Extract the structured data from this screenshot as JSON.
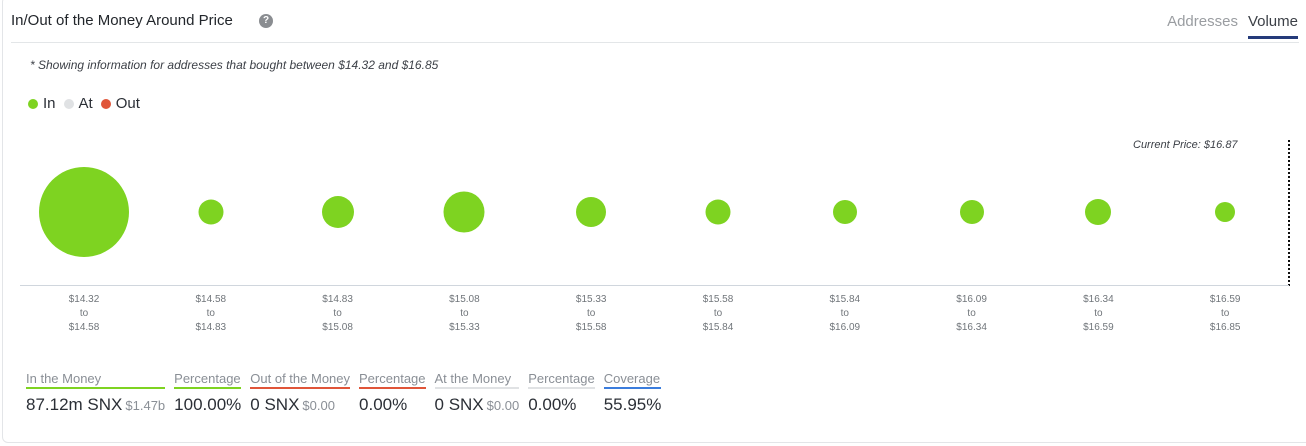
{
  "header": {
    "title": "In/Out of the Money Around Price",
    "help_icon": "question-circle-icon",
    "tabs": [
      {
        "label": "Addresses",
        "active": false
      },
      {
        "label": "Volume",
        "active": true
      }
    ]
  },
  "note": "* Showing information for addresses that bought between $14.32 and $16.85",
  "legend": [
    {
      "label": "In",
      "color": "#7ed321"
    },
    {
      "label": "At",
      "color": "#e0e2e4"
    },
    {
      "label": "Out",
      "color": "#e05539"
    }
  ],
  "current_price_label": "Current Price: $16.87",
  "colors": {
    "in": "#7ed321",
    "at": "#e0e2e4",
    "out": "#e05539",
    "coverage": "#3b7ddd",
    "tab_underline": "#253b7a"
  },
  "chart_data": {
    "type": "scatter",
    "title": "In/Out of the Money Around Price",
    "subtitle": "* Showing information for addresses that bought between $14.32 and $16.85",
    "xlabel": "",
    "ylabel": "",
    "categories": [
      "$14.32 to $14.58",
      "$14.58 to $14.83",
      "$14.83 to $15.08",
      "$15.08 to $15.33",
      "$15.33 to $15.58",
      "$15.58 to $15.84",
      "$15.84 to $16.09",
      "$16.09 to $16.34",
      "$16.34 to $16.59",
      "$16.59 to $16.85"
    ],
    "ranges": [
      {
        "from": "$14.32",
        "to": "$14.58"
      },
      {
        "from": "$14.58",
        "to": "$14.83"
      },
      {
        "from": "$14.83",
        "to": "$15.08"
      },
      {
        "from": "$15.08",
        "to": "$15.33"
      },
      {
        "from": "$15.33",
        "to": "$15.58"
      },
      {
        "from": "$15.58",
        "to": "$15.84"
      },
      {
        "from": "$15.84",
        "to": "$16.09"
      },
      {
        "from": "$16.09",
        "to": "$16.34"
      },
      {
        "from": "$16.34",
        "to": "$16.59"
      },
      {
        "from": "$16.59",
        "to": "$16.85"
      }
    ],
    "series": [
      {
        "name": "In",
        "color": "#7ed321",
        "bubble_radius_px": [
          45,
          12.5,
          16,
          20.5,
          15,
          12.5,
          12,
          12,
          13,
          10
        ]
      }
    ],
    "legend": [
      "In",
      "At",
      "Out"
    ],
    "legend_position": "top-left",
    "annotations": [
      "Current Price: $16.87"
    ],
    "grid": false
  },
  "stats": [
    {
      "label": "In the Money",
      "value": "87.12m SNX",
      "sub": "$1.47b",
      "underline": "#7ed321"
    },
    {
      "label": "Percentage",
      "value": "100.00%",
      "sub": "",
      "underline": "#7ed321"
    },
    {
      "label": "Out of the Money",
      "value": "0 SNX",
      "sub": "$0.00",
      "underline": "#e05539"
    },
    {
      "label": "Percentage",
      "value": "0.00%",
      "sub": "",
      "underline": "#e05539"
    },
    {
      "label": "At the Money",
      "value": "0 SNX",
      "sub": "$0.00",
      "underline": "#e0e2e4"
    },
    {
      "label": "Percentage",
      "value": "0.00%",
      "sub": "",
      "underline": "#e0e2e4"
    },
    {
      "label": "Coverage",
      "value": "55.95%",
      "sub": "",
      "underline": "#3b7ddd"
    }
  ]
}
